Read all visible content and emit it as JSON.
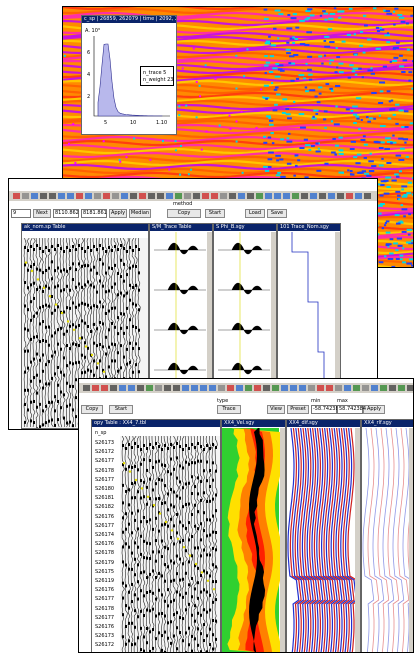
{
  "window1": {
    "histogram_title": "c_sp | 26859, 262079 | time | 2092, 2092",
    "y_axis_label": "A. 10³",
    "y_ticks": [
      "6",
      "4",
      "2"
    ],
    "x_ticks": [
      "5",
      "10",
      "1.10"
    ],
    "legend": [
      "n_trace  5",
      "n_weight 23"
    ]
  },
  "window2": {
    "fields": [
      "9",
      "Next",
      "8110.862",
      "8181.861"
    ],
    "buttons": [
      "Apply",
      "Median",
      "Copy",
      "Start",
      "Load",
      "Save"
    ],
    "method_label": "method",
    "table_title": "ak_nom.sp Table",
    "panel_titles": [
      "S/M_Trace Table",
      "S Phi_B.sgy",
      "101 Trace_Nom.sgy"
    ]
  },
  "window3": {
    "buttons": [
      "Copy",
      "Start",
      "Trace",
      "View",
      "Preset",
      "Apply"
    ],
    "type_label": "type",
    "min_label": "min",
    "max_label": "max",
    "min_value": "-58.742384",
    "max_value": "58.742384",
    "table_title": "opy Table : XX4_7.tbl",
    "column_header": "n_sp",
    "panel_titles": [
      "XX4_Vel.sgy",
      "XX4_dif.sgy",
      "XX4_rlf.sgy"
    ],
    "rows": [
      "S26173",
      "S26172",
      "S26177",
      "S26178",
      "S26177",
      "S26180",
      "S26181",
      "S26182",
      "S26176",
      "S26177",
      "S26174",
      "S26176",
      "S26178",
      "S26179",
      "S26175",
      "S26119",
      "S26176",
      "S26177",
      "S26178",
      "S26177",
      "S26176",
      "S26173",
      "S26172"
    ]
  }
}
